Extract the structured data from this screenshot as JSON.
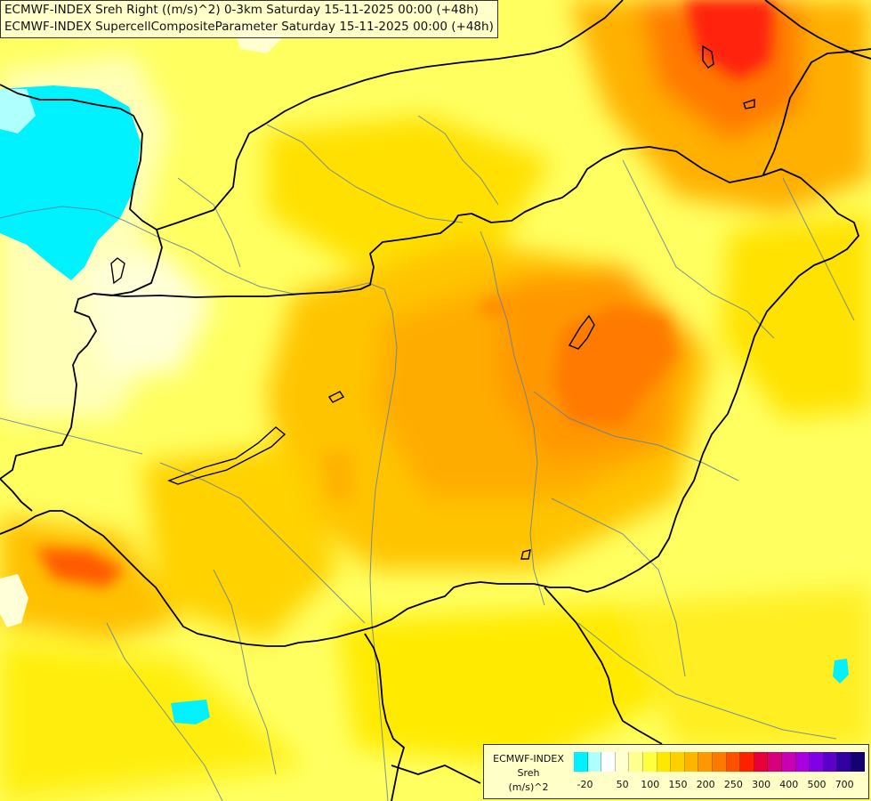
{
  "title": {
    "line1": "ECMWF-INDEX Sreh Right ((m/s)^2) 0-3km Saturday 15-11-2025 00:00 (+48h)",
    "line2": "ECMWF-INDEX SupercellCompositeParameter Saturday 15-11-2025 00:00 (+48h)"
  },
  "legend": {
    "name_line1": "ECMWF-INDEX",
    "name_line2": "Sreh",
    "name_line3": "(m/s)^2",
    "swatch_colors": [
      "#00f0ff",
      "#b0ffff",
      "#ffffff",
      "#ffffd0",
      "#ffff90",
      "#ffff40",
      "#ffe800",
      "#ffd000",
      "#ffb400",
      "#ff9800",
      "#ff7800",
      "#ff5000",
      "#ff2000",
      "#e8003c",
      "#d8007a",
      "#c800b4",
      "#a800e0",
      "#8000e8",
      "#5a00c8",
      "#3000a0",
      "#140070"
    ],
    "tick_labels": [
      "-20",
      "50",
      "100",
      "150",
      "200",
      "250",
      "300",
      "400",
      "500",
      "700"
    ]
  },
  "colors": {
    "base": "#ffff60",
    "border_line": "#000000",
    "river_line": "#6080a0"
  }
}
